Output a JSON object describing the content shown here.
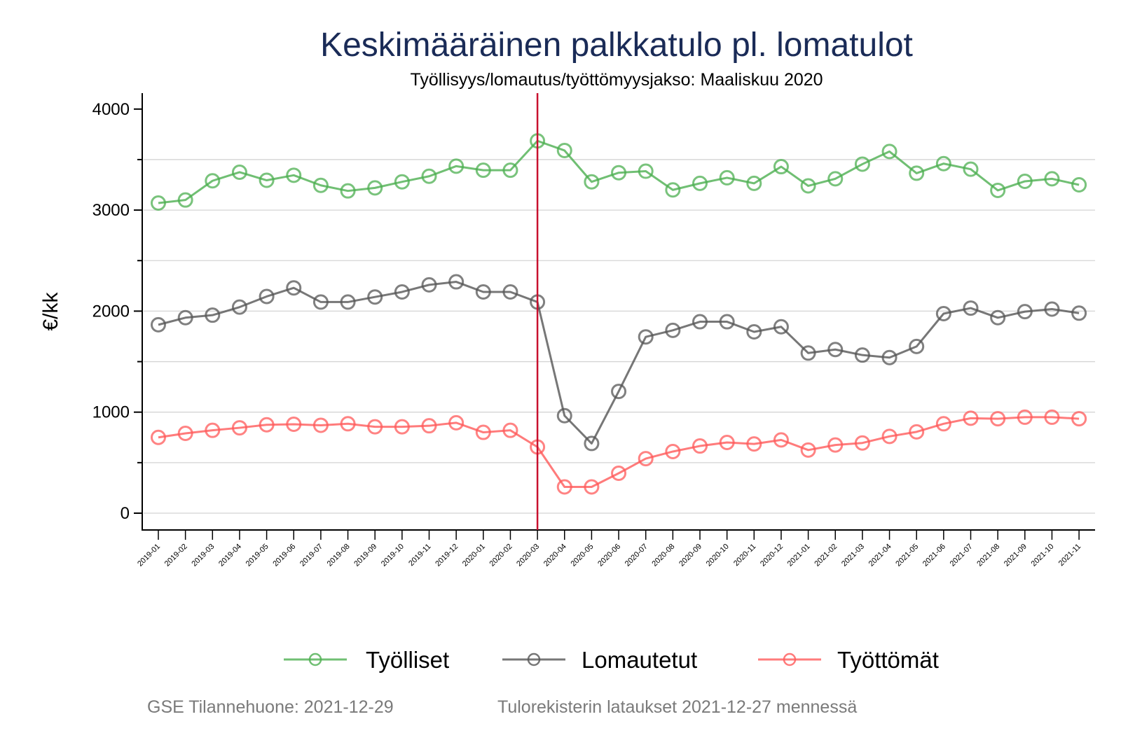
{
  "chart_data": {
    "type": "line",
    "title": "Keskimääräinen palkkatulo pl. lomatulot",
    "subtitle": "Työllisyys/lomautus/työttömyysjakso: Maaliskuu 2020",
    "xlabel": "",
    "ylabel": "€/kk",
    "ylim": [
      -150,
      4150
    ],
    "yticks": [
      0,
      1000,
      2000,
      3000,
      4000
    ],
    "ytick_labels": [
      "0",
      "1000",
      "2000",
      "3000",
      "4000"
    ],
    "y_minor_ticks": [
      500,
      1500,
      2500,
      3500
    ],
    "gridlines": [
      0,
      500,
      1000,
      1500,
      2000,
      2500,
      3000,
      3500
    ],
    "grid": true,
    "legend_position": "bottom",
    "categories": [
      "2019-01",
      "2019-02",
      "2019-03",
      "2019-04",
      "2019-05",
      "2019-06",
      "2019-07",
      "2019-08",
      "2019-09",
      "2019-10",
      "2019-11",
      "2019-12",
      "2020-01",
      "2020-02",
      "2020-03",
      "2020-04",
      "2020-05",
      "2020-06",
      "2020-07",
      "2020-08",
      "2020-09",
      "2020-10",
      "2020-11",
      "2020-12",
      "2021-01",
      "2021-02",
      "2021-03",
      "2021-04",
      "2021-05",
      "2021-06",
      "2021-07",
      "2021-08",
      "2021-09",
      "2021-10",
      "2021-11"
    ],
    "vertical_marker": {
      "category": "2020-03",
      "color": "#c8102e"
    },
    "series": [
      {
        "name": "Työlliset",
        "color": "#4caf50",
        "values": [
          3070,
          3100,
          3290,
          3375,
          3295,
          3345,
          3245,
          3190,
          3220,
          3280,
          3335,
          3435,
          3395,
          3395,
          3685,
          3590,
          3280,
          3370,
          3385,
          3200,
          3265,
          3320,
          3265,
          3430,
          3240,
          3310,
          3455,
          3580,
          3365,
          3460,
          3405,
          3195,
          3285,
          3310,
          3250
        ]
      },
      {
        "name": "Lomautetut",
        "color": "#555555",
        "values": [
          1865,
          1935,
          1960,
          2040,
          2145,
          2230,
          2090,
          2090,
          2140,
          2190,
          2260,
          2290,
          2190,
          2190,
          2090,
          965,
          690,
          1205,
          1745,
          1810,
          1895,
          1895,
          1795,
          1845,
          1585,
          1620,
          1565,
          1540,
          1650,
          1975,
          2030,
          1935,
          1995,
          2020,
          1980
        ]
      },
      {
        "name": "Työttömät",
        "color": "#ff5a5a",
        "values": [
          750,
          790,
          820,
          845,
          875,
          880,
          870,
          885,
          855,
          855,
          865,
          895,
          800,
          820,
          655,
          260,
          260,
          395,
          540,
          610,
          665,
          700,
          685,
          725,
          625,
          675,
          695,
          760,
          805,
          885,
          940,
          935,
          950,
          950,
          935
        ]
      }
    ],
    "footer": {
      "left": "GSE Tilannehuone: 2021-12-29",
      "right": "Tulorekisterin lataukset 2021-12-27 mennessä"
    }
  }
}
